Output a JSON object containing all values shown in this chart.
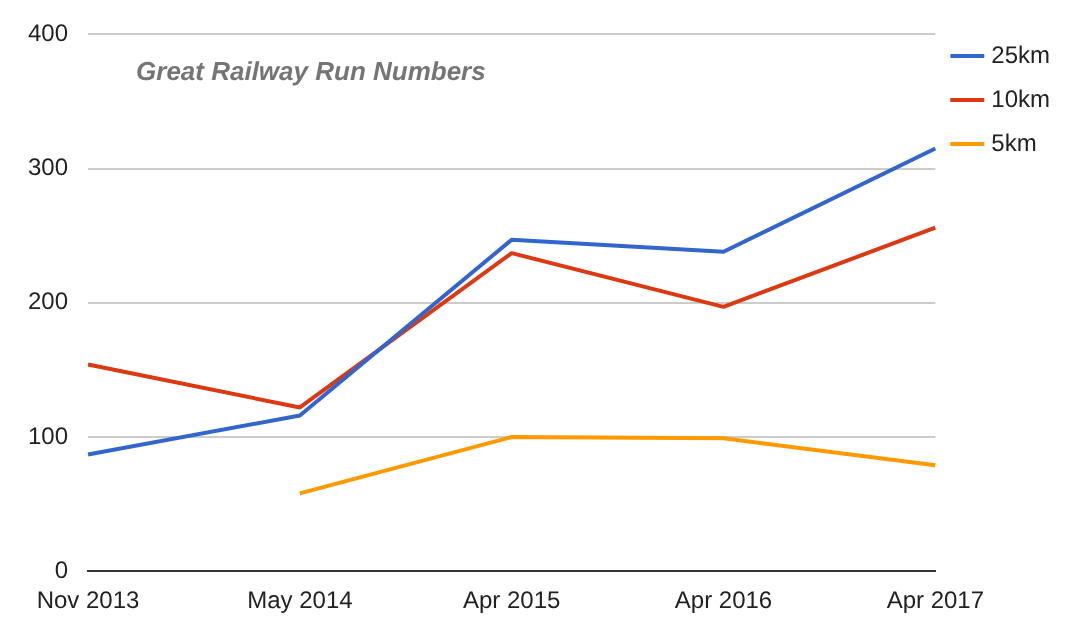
{
  "chart_data": {
    "type": "line",
    "title": "Great Railway Run Numbers",
    "categories": [
      "Nov 2013",
      "May 2014",
      "Apr 2015",
      "Apr 2016",
      "Apr 2017"
    ],
    "series": [
      {
        "name": "25km",
        "color": "#3366cc",
        "values": [
          87,
          116,
          247,
          238,
          315
        ]
      },
      {
        "name": "10km",
        "color": "#dc3912",
        "values": [
          154,
          122,
          237,
          197,
          256
        ]
      },
      {
        "name": "5km",
        "color": "#ff9900",
        "values": [
          null,
          58,
          100,
          99,
          79
        ]
      }
    ],
    "ylim": [
      0,
      400
    ],
    "yticks": [
      0,
      100,
      200,
      300,
      400
    ],
    "grid": "y",
    "legend": "right",
    "marker": "none",
    "line_style": "solid"
  }
}
